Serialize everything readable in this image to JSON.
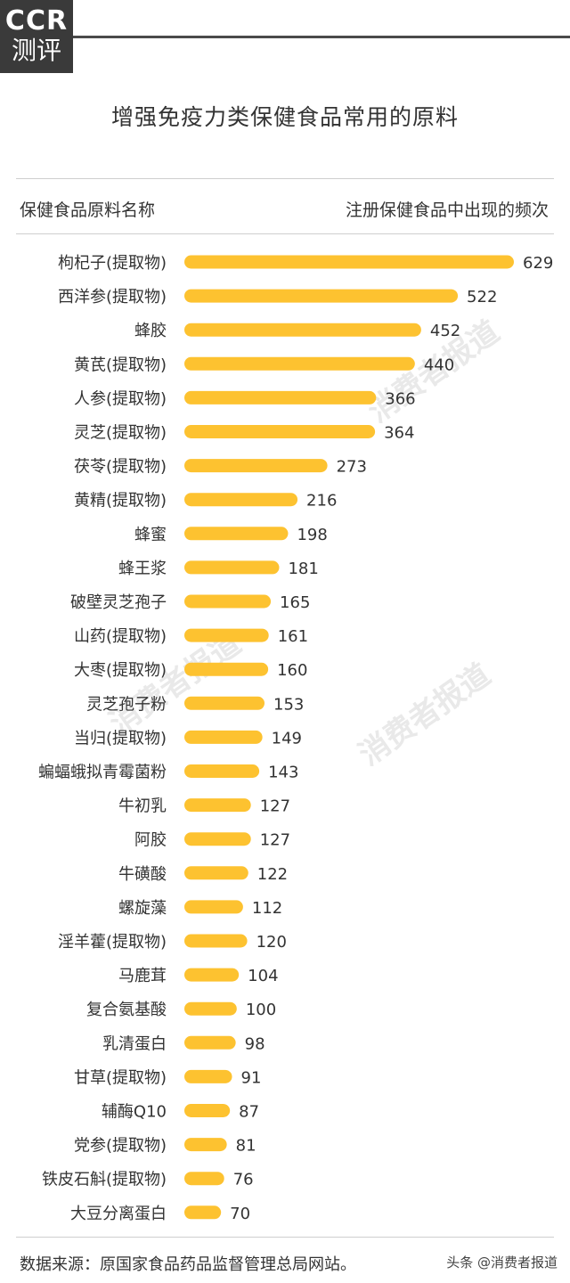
{
  "logo": {
    "brand": "CCR",
    "sub": "测评"
  },
  "title": "增强免疫力类保健食品常用的原料",
  "header": {
    "left": "保健食品原料名称",
    "right": "注册保健食品中出现的频次"
  },
  "watermark": "消费者报道",
  "source": "数据来源：原国家食品药品监督管理总局网站。",
  "credit": "头条 @消费者报道",
  "colors": {
    "bar": "#FDC230",
    "text": "#333333",
    "rule": "#cfcfcf"
  },
  "chart_data": {
    "type": "bar",
    "orientation": "horizontal",
    "xlim": [
      0,
      629
    ],
    "categories": [
      "枸杞子(提取物)",
      "西洋参(提取物)",
      "蜂胶",
      "黄芪(提取物)",
      "人参(提取物)",
      "灵芝(提取物)",
      "茯苓(提取物)",
      "黄精(提取物)",
      "蜂蜜",
      "蜂王浆",
      "破壁灵芝孢子",
      "山药(提取物)",
      "大枣(提取物)",
      "灵芝孢子粉",
      "当归(提取物)",
      "蝙蝠蛾拟青霉菌粉",
      "牛初乳",
      "阿胶",
      "牛磺酸",
      "螺旋藻",
      "淫羊藿(提取物)",
      "马鹿茸",
      "复合氨基酸",
      "乳清蛋白",
      "甘草(提取物)",
      "辅酶Q10",
      "党参(提取物)",
      "铁皮石斛(提取物)",
      "大豆分离蛋白"
    ],
    "values": [
      629,
      522,
      452,
      440,
      366,
      364,
      273,
      216,
      198,
      181,
      165,
      161,
      160,
      153,
      149,
      143,
      127,
      127,
      122,
      112,
      120,
      104,
      100,
      98,
      91,
      87,
      81,
      76,
      70
    ]
  }
}
